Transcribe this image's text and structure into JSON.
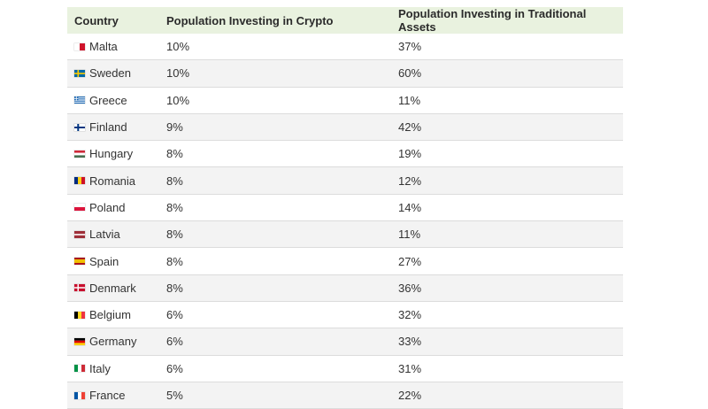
{
  "table": {
    "headers": [
      "Country",
      "Population Investing in Crypto",
      "Population Investing in Traditional Assets"
    ],
    "rows": [
      {
        "country": "Malta",
        "flag": "malta-flag-icon",
        "crypto": "10%",
        "traditional": "37%"
      },
      {
        "country": "Sweden",
        "flag": "sweden-flag-icon",
        "crypto": "10%",
        "traditional": "60%"
      },
      {
        "country": "Greece",
        "flag": "greece-flag-icon",
        "crypto": "10%",
        "traditional": "11%"
      },
      {
        "country": "Finland",
        "flag": "finland-flag-icon",
        "crypto": "9%",
        "traditional": "42%"
      },
      {
        "country": "Hungary",
        "flag": "hungary-flag-icon",
        "crypto": "8%",
        "traditional": "19%"
      },
      {
        "country": "Romania",
        "flag": "romania-flag-icon",
        "crypto": "8%",
        "traditional": "12%"
      },
      {
        "country": "Poland",
        "flag": "poland-flag-icon",
        "crypto": "8%",
        "traditional": "14%"
      },
      {
        "country": "Latvia",
        "flag": "latvia-flag-icon",
        "crypto": "8%",
        "traditional": "11%"
      },
      {
        "country": "Spain",
        "flag": "spain-flag-icon",
        "crypto": "8%",
        "traditional": "27%"
      },
      {
        "country": "Denmark",
        "flag": "denmark-flag-icon",
        "crypto": "8%",
        "traditional": "36%"
      },
      {
        "country": "Belgium",
        "flag": "belgium-flag-icon",
        "crypto": "6%",
        "traditional": "32%"
      },
      {
        "country": "Germany",
        "flag": "germany-flag-icon",
        "crypto": "6%",
        "traditional": "33%"
      },
      {
        "country": "Italy",
        "flag": "italy-flag-icon",
        "crypto": "6%",
        "traditional": "31%"
      },
      {
        "country": "France",
        "flag": "france-flag-icon",
        "crypto": "5%",
        "traditional": "22%"
      }
    ]
  },
  "colors": {
    "header_background": "#e9f2df",
    "row_alt_background": "#f3f3f3",
    "border": "#dcdcdc"
  }
}
